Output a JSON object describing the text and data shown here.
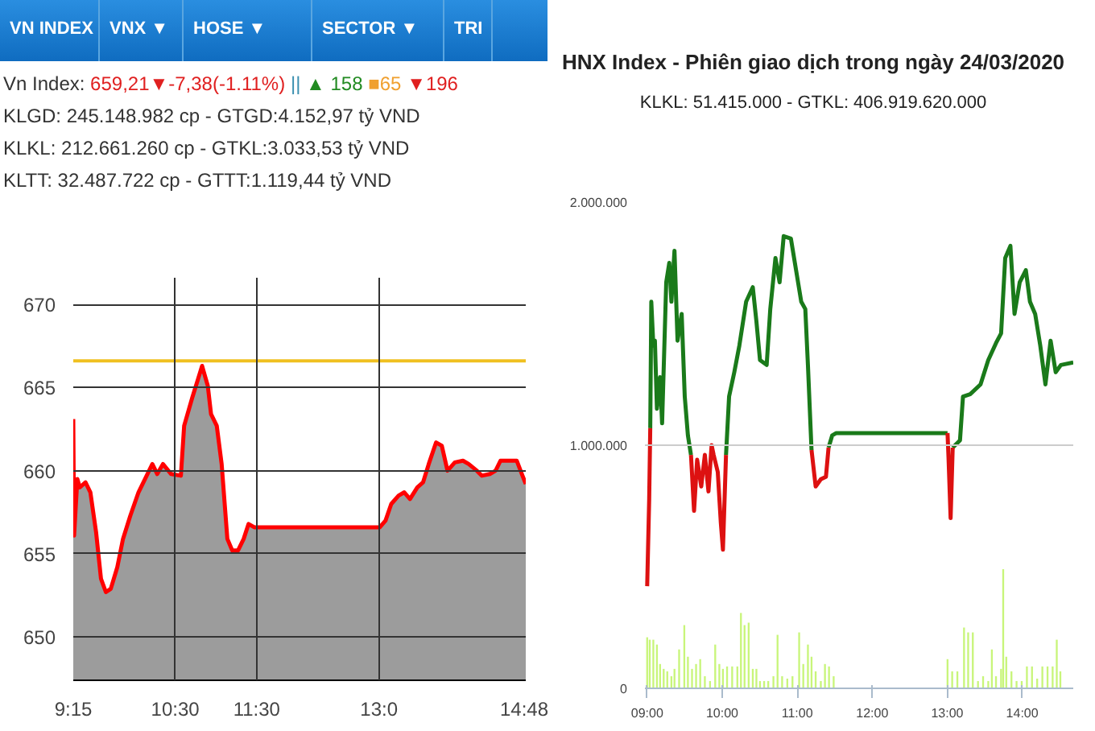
{
  "chart_data": [
    {
      "type": "area",
      "annotations": [
        "VN INDEX",
        "VNX ▼",
        "HOSE ▼",
        "SECTOR ▼",
        "TRI",
        "Vn Index:",
        "659,21▼-7,38(-1.11%)",
        "||",
        "▲ 158",
        "■65",
        "▼196",
        "KLGD: 245.148.982 cp - GTGD:4.152,97 tỷ VND",
        "KLKL: 212.661.260 cp - GTKL:3.033,53 tỷ VND",
        "KLTT: 32.487.722 cp - GTTT:1.119,44 tỷ VND"
      ],
      "xlim": [
        9.25,
        14.8
      ],
      "ylim": [
        647.4,
        671.6
      ],
      "xticks": [
        {
          "value": 9.25,
          "label": "9:15"
        },
        {
          "value": 10.5,
          "label": "10:30"
        },
        {
          "value": 11.5,
          "label": "11:30"
        },
        {
          "value": 13,
          "label": "13:0"
        },
        {
          "value": 14.8,
          "label": "14:48"
        }
      ],
      "yticks": [
        650,
        655,
        660,
        665,
        670
      ],
      "grid": true,
      "ref_lines": [
        {
          "axis": "y",
          "value": 666.6,
          "color": "#f0c020"
        }
      ],
      "series": [
        {
          "color": "#ff0000",
          "x": [
            9.25,
            9.26,
            9.3,
            9.33,
            9.4,
            9.46,
            9.53,
            9.59,
            9.65,
            9.71,
            9.79,
            9.86,
            9.95,
            10.05,
            10.15,
            10.22,
            10.28,
            10.35,
            10.45,
            10.57,
            10.61,
            10.71,
            10.78,
            10.83,
            10.9,
            10.94,
            11.01,
            11.07,
            11.14,
            11.2,
            11.27,
            11.34,
            11.4,
            11.47,
            13.01,
            13.08,
            13.15,
            13.24,
            13.31,
            13.38,
            13.47,
            13.54,
            13.61,
            13.7,
            13.77,
            13.84,
            13.93,
            14.03,
            14.1,
            14.2,
            14.26,
            14.36,
            14.43,
            14.49,
            14.69,
            14.76,
            14.8
          ],
          "values": [
            663.1,
            656.1,
            659.5,
            659,
            659.3,
            658.7,
            656.3,
            653.5,
            652.7,
            652.9,
            654.2,
            655.9,
            657.3,
            658.7,
            659.7,
            660.4,
            659.8,
            660.4,
            659.8,
            659.7,
            662.7,
            664.4,
            665.5,
            666.3,
            665.1,
            663.4,
            662.7,
            660.4,
            655.9,
            655.2,
            655.2,
            655.9,
            656.8,
            656.6,
            656.6,
            657,
            658,
            658.5,
            658.7,
            658.3,
            659,
            659.3,
            660.4,
            661.7,
            661.5,
            660,
            660.5,
            660.6,
            660.4,
            660,
            659.7,
            659.8,
            660,
            660.6,
            660.6,
            659.7,
            659.2
          ]
        }
      ]
    },
    {
      "type": "line",
      "title": "HNX Index - Phiên giao dịch trong ngày 24/03/2020",
      "subtitle": "KLKL: 51.415.000 - GTKL: 406.919.620.000",
      "xlim": [
        8.97,
        14.68
      ],
      "ylim": [
        0,
        2000000
      ],
      "xticks": [
        {
          "value": 9,
          "label": "09:00"
        },
        {
          "value": 10,
          "label": "10:00"
        },
        {
          "value": 11,
          "label": "11:00"
        },
        {
          "value": 12,
          "label": "12:00"
        },
        {
          "value": 13,
          "label": "13:00"
        },
        {
          "value": 14,
          "label": "14:00"
        }
      ],
      "yticks": [
        0,
        {
          "value": 1000000,
          "label": "1.000.000"
        },
        {
          "value": 2000000,
          "label": "2.000.000"
        }
      ],
      "grid": "y",
      "series": [
        {
          "color": "#c8f57a",
          "type": "bar",
          "x": [
            9.0,
            9.034,
            9.082,
            9.13,
            9.172,
            9.22,
            9.268,
            9.323,
            9.364,
            9.426,
            9.495,
            9.543,
            9.598,
            9.652,
            9.707,
            9.769,
            9.838,
            9.907,
            9.962,
            10.01,
            10.065,
            10.133,
            10.202,
            10.25,
            10.298,
            10.353,
            10.408,
            10.456,
            10.504,
            10.559,
            10.614,
            10.683,
            10.738,
            10.799,
            10.868,
            10.937,
            11.026,
            11.081,
            11.143,
            11.191,
            11.246,
            11.315,
            11.37,
            11.424,
            11.486,
            13.004,
            13.066,
            13.135,
            13.224,
            13.279,
            13.341,
            13.41,
            13.478,
            13.547,
            13.595,
            13.65,
            13.718,
            13.746,
            13.787,
            13.856,
            13.924,
            13.993,
            14.062,
            14.13,
            14.199,
            14.268,
            14.337,
            14.405,
            14.46,
            14.508
          ],
          "values": [
            210000,
            200000,
            200000,
            180000,
            100000,
            80000,
            70000,
            50000,
            80000,
            160000,
            260000,
            130000,
            80000,
            100000,
            120000,
            50000,
            30000,
            180000,
            100000,
            80000,
            90000,
            90000,
            90000,
            310000,
            260000,
            270000,
            80000,
            80000,
            30000,
            30000,
            30000,
            50000,
            220000,
            50000,
            40000,
            50000,
            230000,
            100000,
            180000,
            130000,
            70000,
            30000,
            100000,
            90000,
            50000,
            120000,
            70000,
            70000,
            250000,
            230000,
            230000,
            30000,
            50000,
            30000,
            160000,
            50000,
            80000,
            490000,
            130000,
            70000,
            30000,
            30000,
            90000,
            90000,
            40000,
            90000,
            90000,
            90000,
            200000,
            70000
          ]
        },
        {
          "color": "#1a7a1a",
          "x": [
            9.041,
            9.055,
            9.082,
            9.103,
            9.13,
            9.172,
            9.199,
            9.254,
            9.295,
            9.323,
            9.364,
            9.405,
            9.46,
            9.501,
            9.543,
            9.584,
            9.8,
            10.051,
            10.092,
            10.161,
            10.229,
            10.319,
            10.408,
            10.456,
            10.504,
            10.593,
            10.641,
            10.71,
            10.765,
            10.82,
            10.916,
            10.985,
            11.054,
            11.108,
            11.143,
            11.191,
            11.3,
            11.418,
            11.466,
            11.521,
            13.004,
            13.04,
            13.073,
            13.17,
            13.21,
            13.306,
            13.444,
            13.547,
            13.65,
            13.718,
            13.773,
            13.842,
            13.897,
            13.966,
            14.048,
            14.103,
            14.172,
            14.24,
            14.309,
            14.378,
            14.446,
            14.515,
            14.68
          ],
          "values": [
            1070000,
            1590000,
            1410000,
            1430000,
            1150000,
            1280000,
            1090000,
            1670000,
            1750000,
            1590000,
            1800000,
            1430000,
            1540000,
            1200000,
            1040000,
            960000,
            null,
            960000,
            1200000,
            1300000,
            1410000,
            1590000,
            1650000,
            1510000,
            1350000,
            1330000,
            1560000,
            1770000,
            1670000,
            1860000,
            1850000,
            1720000,
            1590000,
            1560000,
            1330000,
            980000,
            null,
            990000,
            1040000,
            1050000,
            1050000,
            null,
            990000,
            1020000,
            1200000,
            1210000,
            1250000,
            1350000,
            1420000,
            1460000,
            1770000,
            1820000,
            1540000,
            1670000,
            1720000,
            1590000,
            1540000,
            1410000,
            1250000,
            1430000,
            1300000,
            1330000,
            1340000
          ]
        },
        {
          "color": "#dd1111",
          "x": [
            9.0,
            9.027,
            9.041,
            9.3,
            9.584,
            9.625,
            9.666,
            9.721,
            9.769,
            9.817,
            9.859,
            9.886,
            9.941,
            9.982,
            10.01,
            10.051,
            10.5,
            11.191,
            11.246,
            11.315,
            11.383,
            11.418,
            12.5,
            13.004,
            13.017,
            13.045,
            13.073
          ],
          "values": [
            420000,
            780000,
            1070000,
            null,
            960000,
            730000,
            940000,
            830000,
            960000,
            810000,
            1000000,
            960000,
            890000,
            680000,
            570000,
            960000,
            null,
            980000,
            830000,
            860000,
            870000,
            990000,
            null,
            1050000,
            950000,
            700000,
            990000
          ]
        }
      ]
    }
  ]
}
